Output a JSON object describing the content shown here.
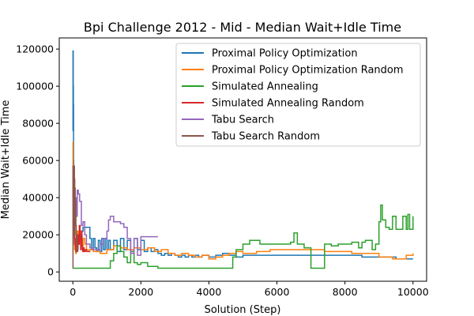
{
  "chart_data": {
    "type": "line",
    "title": "Bpi Challenge 2012 - Mid - Median Wait+Idle Time",
    "xlabel": "Solution (Step)",
    "ylabel": "Median Wait+Idle Time",
    "xlim": [
      -400,
      10400
    ],
    "ylim": [
      -5000,
      126000
    ],
    "xticks": [
      0,
      2000,
      4000,
      6000,
      8000,
      10000
    ],
    "yticks": [
      0,
      20000,
      40000,
      60000,
      80000,
      100000,
      120000
    ],
    "xtick_labels": [
      "0",
      "2000",
      "4000",
      "6000",
      "8000",
      "10000"
    ],
    "ytick_labels": [
      "0",
      "20000",
      "40000",
      "60000",
      "80000",
      "100000",
      "120000"
    ],
    "grid": false,
    "legend_position": "top-right",
    "series": [
      {
        "name": "Proximal Policy Optimization",
        "color": "#1f77b4",
        "x": [
          0,
          5,
          10,
          15,
          20,
          25,
          30,
          40,
          50,
          60,
          80,
          100,
          120,
          150,
          180,
          200,
          230,
          260,
          300,
          350,
          400,
          450,
          500,
          550,
          600,
          650,
          700,
          750,
          800,
          850,
          900,
          950,
          1000,
          1050,
          1100,
          1200,
          1300,
          1400,
          1500,
          1600,
          1700,
          1800,
          1900,
          2000,
          2100,
          2200,
          2300,
          2400,
          2500,
          2600,
          2700,
          2800,
          2900,
          3000,
          3100,
          3200,
          3300,
          3400,
          3500,
          3600,
          3700,
          3800,
          4000,
          4200,
          4400,
          4600,
          4800,
          5000,
          5500,
          6000,
          6500,
          7000,
          7500,
          8000,
          8500,
          9000,
          9500,
          9600,
          9700,
          9800,
          9900,
          10000
        ],
        "y": [
          76000,
          119000,
          100000,
          90000,
          60000,
          45000,
          30000,
          20000,
          15000,
          13000,
          12000,
          11500,
          12000,
          15000,
          18000,
          16000,
          20000,
          22000,
          24000,
          24000,
          24000,
          24000,
          18000,
          12000,
          18000,
          13000,
          11000,
          17000,
          11000,
          18000,
          12000,
          18000,
          12000,
          17000,
          12000,
          17000,
          11000,
          18000,
          12000,
          17000,
          11000,
          18000,
          12000,
          17000,
          11000,
          13000,
          11000,
          12000,
          10000,
          9000,
          10000,
          9000,
          10000,
          9000,
          8000,
          9000,
          8000,
          9000,
          8000,
          9000,
          8000,
          9000,
          8000,
          9000,
          10000,
          9000,
          8000,
          9000,
          9000,
          9000,
          9000,
          9000,
          9000,
          9000,
          8000,
          8000,
          7000,
          7000,
          7000,
          7000,
          7000,
          7000
        ]
      },
      {
        "name": "Proximal Policy Optimization Random",
        "color": "#ff7f0e",
        "x": [
          0,
          5,
          10,
          20,
          30,
          50,
          80,
          100,
          130,
          160,
          200,
          250,
          300,
          350,
          400,
          450,
          500,
          600,
          800,
          1000,
          1200,
          1400,
          1600,
          1800,
          2000,
          2200,
          2400,
          2600,
          2800,
          3000,
          3200,
          3400,
          3600,
          3800,
          4000,
          4200,
          4400,
          4600,
          4800,
          5000,
          5400,
          5800,
          6200,
          6600,
          7000,
          7400,
          7800,
          8200,
          8600,
          9000,
          9200,
          9400,
          9600,
          9800,
          10000
        ],
        "y": [
          70000,
          40000,
          25000,
          20000,
          15000,
          12000,
          10000,
          18000,
          22000,
          20000,
          16000,
          14000,
          18000,
          15000,
          12000,
          11000,
          12000,
          11000,
          10000,
          12000,
          14000,
          13000,
          12000,
          13000,
          12000,
          13000,
          11000,
          12000,
          10000,
          9000,
          10000,
          9000,
          8000,
          9000,
          7000,
          8000,
          9000,
          10000,
          11000,
          10000,
          11000,
          12000,
          12000,
          12000,
          12000,
          11000,
          11000,
          10000,
          10000,
          8000,
          8000,
          7000,
          7000,
          9000,
          10000
        ]
      },
      {
        "name": "Simulated Annealing",
        "color": "#2ca02c",
        "x": [
          0,
          50,
          100,
          200,
          300,
          500,
          700,
          900,
          1000,
          1100,
          1200,
          1300,
          1400,
          1500,
          1600,
          1700,
          1800,
          1900,
          2000,
          2200,
          2500,
          3000,
          3500,
          4000,
          4200,
          4500,
          4700,
          4800,
          5000,
          5200,
          5500,
          6000,
          6400,
          6500,
          6600,
          6800,
          7000,
          7200,
          7400,
          7600,
          7800,
          8000,
          8200,
          8400,
          8500,
          8600,
          8800,
          8900,
          9000,
          9050,
          9100,
          9200,
          9300,
          9400,
          9500,
          9600,
          9700,
          9800,
          9850,
          9900,
          10000
        ],
        "y": [
          2000,
          2000,
          2000,
          2000,
          2000,
          2000,
          2000,
          2000,
          2000,
          6000,
          10000,
          14000,
          11000,
          8000,
          5000,
          11000,
          5000,
          4000,
          5000,
          3000,
          2000,
          2000,
          2000,
          2000,
          2000,
          2000,
          8000,
          12000,
          15000,
          17000,
          15000,
          15000,
          16000,
          21000,
          15000,
          13000,
          2000,
          2000,
          15000,
          14000,
          15000,
          15000,
          16000,
          13000,
          16000,
          17000,
          12000,
          15000,
          27000,
          36000,
          28000,
          24000,
          23000,
          30000,
          23000,
          23000,
          30000,
          23000,
          31000,
          23000,
          30000
        ]
      },
      {
        "name": "Simulated Annealing Random",
        "color": "#d62728",
        "x": [
          0,
          10,
          20,
          30,
          40,
          50,
          70,
          90,
          110,
          130,
          150,
          170,
          190,
          210,
          230,
          250,
          270,
          290,
          310,
          330,
          360,
          400,
          450,
          500
        ],
        "y": [
          25000,
          48000,
          35000,
          28000,
          22000,
          18000,
          14000,
          11000,
          14000,
          12000,
          20000,
          15000,
          25000,
          18000,
          12000,
          22000,
          14000,
          11000,
          13000,
          11000,
          12000,
          11000,
          11000,
          11000
        ]
      },
      {
        "name": "Tabu Search",
        "color": "#9467bd",
        "x": [
          0,
          10,
          20,
          30,
          40,
          50,
          60,
          80,
          100,
          130,
          160,
          200,
          250,
          300,
          350,
          400,
          500,
          600,
          700,
          800,
          900,
          1000,
          1050,
          1100,
          1200,
          1300,
          1400,
          1500,
          1600,
          1700,
          1800,
          1900,
          2000,
          2100,
          2200,
          2300,
          2400,
          2500
        ],
        "y": [
          15000,
          52000,
          40000,
          55000,
          30000,
          45000,
          25000,
          40000,
          30000,
          44000,
          42000,
          38000,
          25000,
          27000,
          20000,
          15000,
          13000,
          12000,
          12000,
          15000,
          18000,
          22000,
          28000,
          30000,
          27000,
          27000,
          26000,
          24000,
          18000,
          10000,
          18000,
          9000,
          19000,
          19000,
          19000,
          19000,
          19000,
          19000
        ]
      },
      {
        "name": "Tabu Search Random",
        "color": "#8c564b",
        "x": [
          0,
          5,
          10,
          15,
          20,
          25,
          30,
          35,
          40,
          45,
          50,
          55,
          60,
          70,
          80,
          90,
          100,
          110,
          120,
          130,
          140,
          150
        ],
        "y": [
          2000,
          57000,
          30000,
          45000,
          20000,
          52000,
          40000,
          25000,
          57000,
          35000,
          50000,
          20000,
          45000,
          38000,
          30000,
          25000,
          15000,
          20000,
          12000,
          11000,
          13000,
          12000
        ]
      }
    ]
  }
}
